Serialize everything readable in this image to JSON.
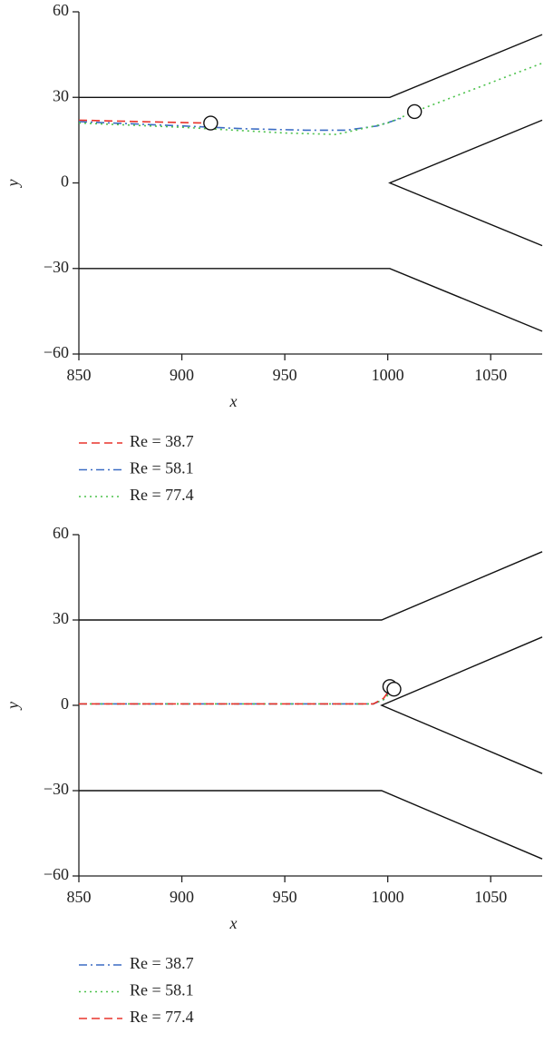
{
  "chart_data": [
    {
      "type": "line",
      "xlabel": "x",
      "ylabel": "y",
      "xlim": [
        850,
        1075
      ],
      "ylim": [
        -60,
        60
      ],
      "xticks": [
        850,
        900,
        950,
        1000,
        1050
      ],
      "yticks": [
        60,
        30,
        0,
        {
          "value": -30,
          "label": "−30"
        },
        {
          "value": -60,
          "label": "−60"
        }
      ],
      "legend": "below",
      "walls": [
        {
          "x": [
            850,
            1001,
            1075
          ],
          "y": [
            30,
            30,
            52
          ]
        },
        {
          "x": [
            850,
            1001,
            1075
          ],
          "y": [
            -30,
            -30,
            -52
          ]
        },
        {
          "x": [
            1075,
            1001,
            1075
          ],
          "y": [
            22,
            0,
            -22
          ]
        }
      ],
      "series": [
        {
          "name": "Re = 38.7",
          "color": "#e8332b",
          "style": "dashed",
          "x": [
            850,
            880,
            910
          ],
          "values": [
            22,
            21.5,
            21
          ]
        },
        {
          "name": "Re = 58.1",
          "color": "#3b6cc4",
          "style": "dashdot",
          "x": [
            850,
            900,
            930,
            960,
            980,
            995,
            1008
          ],
          "values": [
            21.5,
            20,
            19,
            18.5,
            18.5,
            20,
            23
          ]
        },
        {
          "name": "Re = 77.4",
          "color": "#4cc24c",
          "style": "dotted",
          "x": [
            850,
            900,
            950,
            975,
            1000,
            1013,
            1075
          ],
          "values": [
            21,
            19.5,
            17.5,
            17,
            21,
            25,
            42
          ]
        }
      ],
      "markers": [
        {
          "x": 914,
          "y": 21
        },
        {
          "x": 1013,
          "y": 25
        }
      ]
    },
    {
      "type": "line",
      "xlabel": "x",
      "ylabel": "y",
      "xlim": [
        850,
        1075
      ],
      "ylim": [
        -60,
        60
      ],
      "xticks": [
        850,
        900,
        950,
        1000,
        1050
      ],
      "yticks": [
        60,
        30,
        0,
        {
          "value": -30,
          "label": "−30"
        },
        {
          "value": -60,
          "label": "−60"
        }
      ],
      "legend": "below",
      "walls": [
        {
          "x": [
            850,
            997,
            1075
          ],
          "y": [
            30,
            30,
            54
          ]
        },
        {
          "x": [
            850,
            997,
            1075
          ],
          "y": [
            -30,
            -30,
            -54
          ]
        },
        {
          "x": [
            1075,
            997,
            1075
          ],
          "y": [
            24,
            0,
            -24
          ]
        }
      ],
      "series": [
        {
          "name": "Re = 38.7",
          "color": "#3b6cc4",
          "style": "dashdot",
          "x": [
            850,
            950,
            993,
            998,
            1001
          ],
          "values": [
            0.5,
            0.5,
            0.5,
            2,
            5
          ]
        },
        {
          "name": "Re = 58.1",
          "color": "#4cc24c",
          "style": "dotted",
          "x": [
            850,
            950,
            993,
            998,
            1002
          ],
          "values": [
            0.5,
            0.5,
            0.5,
            2,
            5
          ]
        },
        {
          "name": "Re = 77.4",
          "color": "#e8332b",
          "style": "dashed",
          "x": [
            850,
            950,
            993,
            998,
            1001
          ],
          "values": [
            0.5,
            0.5,
            0.5,
            2.5,
            5.5
          ]
        }
      ],
      "markers": [
        {
          "x": 1001,
          "y": 6.6
        },
        {
          "x": 1003,
          "y": 5.7
        }
      ]
    }
  ]
}
